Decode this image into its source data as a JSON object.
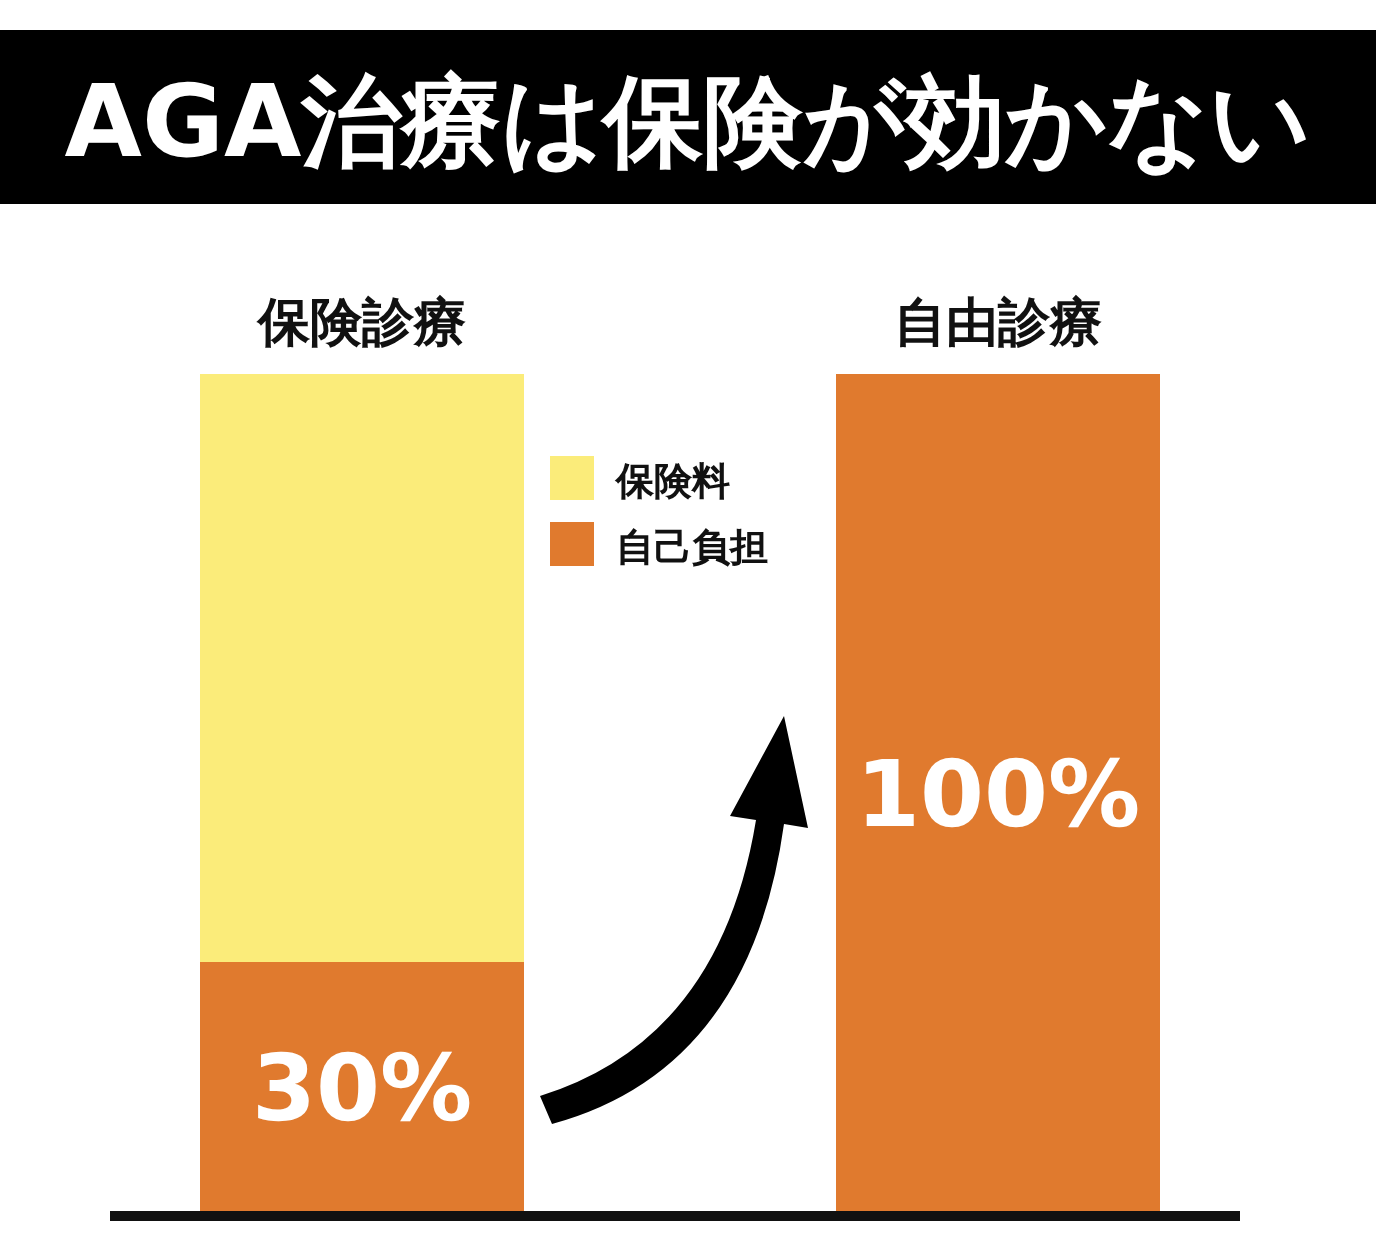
{
  "chart_data": {
    "type": "bar",
    "stacked": true,
    "title": "AGA治療は保険が効かない",
    "categories": [
      "保険診療",
      "自由診療"
    ],
    "series": [
      {
        "name": "自己負担",
        "color": "#e07a2e",
        "values": [
          30,
          100
        ],
        "value_labels": [
          "30%",
          "100%"
        ]
      },
      {
        "name": "保険料",
        "color": "#fbec7a",
        "values": [
          70,
          null
        ]
      }
    ],
    "legend": "top"
  }
}
